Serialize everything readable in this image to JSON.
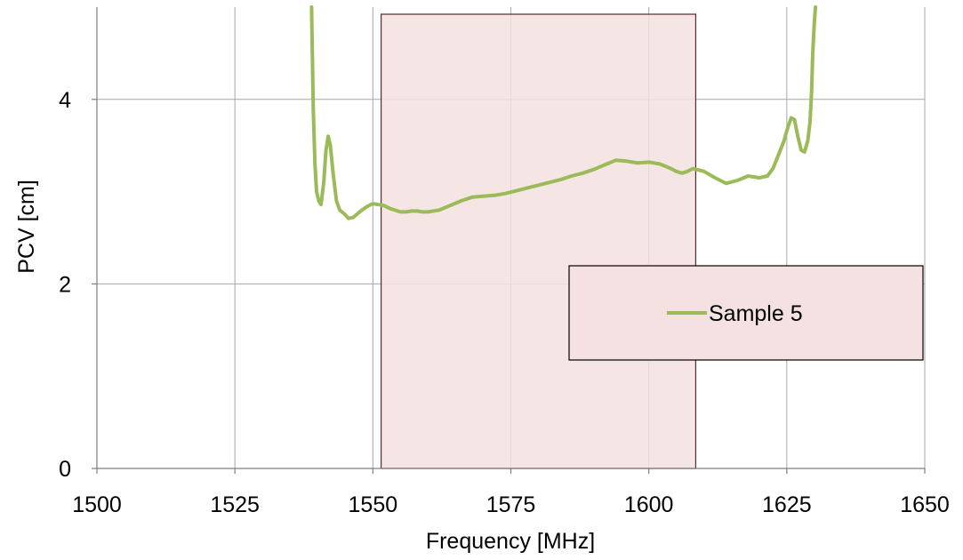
{
  "chart_data": {
    "type": "line",
    "title": "",
    "xlabel": "Frequency [MHz]",
    "ylabel": "PCV [cm]",
    "xlim": [
      1500,
      1650
    ],
    "ylim": [
      0,
      5
    ],
    "x_ticks": [
      1500,
      1525,
      1550,
      1575,
      1600,
      1625,
      1650
    ],
    "y_ticks": [
      0,
      2,
      4
    ],
    "x_tick_labels": [
      "1500",
      "1525",
      "1550",
      "1575",
      "1600",
      "1625",
      "1650"
    ],
    "y_tick_labels": [
      "0",
      "2",
      "4"
    ],
    "grid": true,
    "legend_position": "right",
    "highlight_band": {
      "x_range": [
        1551.5,
        1608.5
      ],
      "color": "#f5e1e1",
      "border_color": "#5a2a2a"
    },
    "series": [
      {
        "name": "Sample 5",
        "color": "#9bbb59",
        "x": [
          1538.9,
          1539.0,
          1539.2,
          1539.5,
          1539.8,
          1540.2,
          1540.6,
          1541.1,
          1541.5,
          1541.9,
          1542.3,
          1542.8,
          1543.4,
          1544.0,
          1544.8,
          1545.6,
          1546.4,
          1547.2,
          1548.0,
          1549.0,
          1550.0,
          1551.0,
          1552.0,
          1553.0,
          1554.0,
          1555.0,
          1556.0,
          1557.0,
          1558.0,
          1559.0,
          1560.0,
          1562.0,
          1564.0,
          1566.0,
          1568.0,
          1570.0,
          1572.0,
          1574.0,
          1576.0,
          1578.0,
          1580.0,
          1582.0,
          1584.0,
          1586.0,
          1588.0,
          1590.0,
          1592.0,
          1594.0,
          1596.0,
          1598.0,
          1600.0,
          1602.0,
          1604.0,
          1605.0,
          1606.0,
          1607.0,
          1608.0,
          1610.0,
          1612.0,
          1614.0,
          1616.0,
          1618.0,
          1620.0,
          1621.5,
          1622.5,
          1623.5,
          1624.5,
          1625.2,
          1625.8,
          1626.4,
          1627.0,
          1627.6,
          1628.2,
          1628.8,
          1629.2,
          1629.5,
          1629.7,
          1630.0,
          1630.2
        ],
        "values": [
          5.0,
          4.6,
          3.9,
          3.3,
          3.0,
          2.9,
          2.86,
          3.1,
          3.45,
          3.6,
          3.5,
          3.2,
          2.9,
          2.8,
          2.76,
          2.71,
          2.72,
          2.76,
          2.8,
          2.84,
          2.87,
          2.86,
          2.85,
          2.82,
          2.8,
          2.78,
          2.78,
          2.79,
          2.79,
          2.78,
          2.78,
          2.8,
          2.85,
          2.9,
          2.94,
          2.95,
          2.96,
          2.98,
          3.01,
          3.04,
          3.07,
          3.1,
          3.13,
          3.17,
          3.2,
          3.24,
          3.29,
          3.34,
          3.33,
          3.31,
          3.32,
          3.3,
          3.25,
          3.22,
          3.2,
          3.22,
          3.25,
          3.22,
          3.15,
          3.09,
          3.12,
          3.17,
          3.15,
          3.17,
          3.25,
          3.4,
          3.55,
          3.7,
          3.8,
          3.78,
          3.6,
          3.45,
          3.43,
          3.55,
          3.75,
          4.1,
          4.5,
          4.85,
          5.0
        ]
      }
    ]
  }
}
